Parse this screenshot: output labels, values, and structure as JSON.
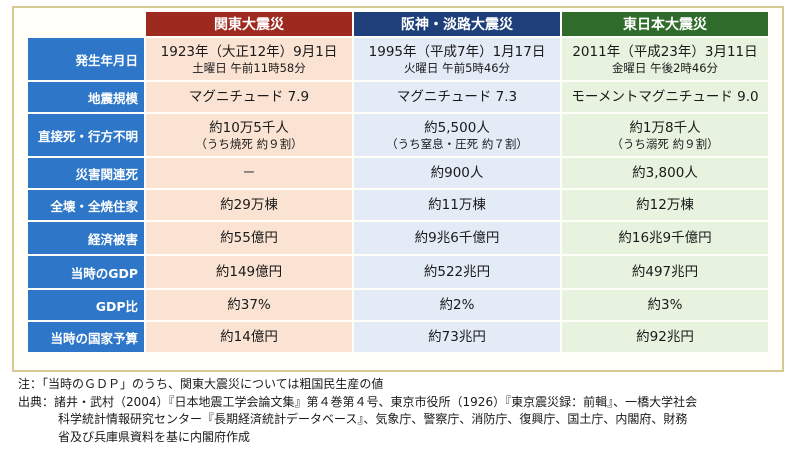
{
  "columns": [
    "関東大震災",
    "阪神・淡路大震災",
    "東日本大震災"
  ],
  "rows": [
    {
      "label": "発生年月日",
      "cells": [
        {
          "main": "1923年（大正12年）9月1日",
          "sub": "土曜日 午前11時58分"
        },
        {
          "main": "1995年（平成7年）1月17日",
          "sub": "火曜日 午前5時46分"
        },
        {
          "main": "2011年（平成23年）3月11日",
          "sub": "金曜日 午後2時46分"
        }
      ]
    },
    {
      "label": "地震規模",
      "cells": [
        {
          "main": "マグニチュード 7.9"
        },
        {
          "main": "マグニチュード 7.3"
        },
        {
          "main": "モーメントマグニチュード 9.0"
        }
      ]
    },
    {
      "label": "直接死・行方不明",
      "cells": [
        {
          "main": "約10万5千人",
          "sub": "（うち焼死 約９割）"
        },
        {
          "main": "約5,500人",
          "sub": "（うち窒息・圧死 約７割）"
        },
        {
          "main": "約1万8千人",
          "sub": "（うち溺死 約９割）"
        }
      ]
    },
    {
      "label": "災害関連死",
      "cells": [
        {
          "main": "－"
        },
        {
          "main": "約900人"
        },
        {
          "main": "約3,800人"
        }
      ]
    },
    {
      "label": "全壊・全焼住家",
      "cells": [
        {
          "main": "約29万棟"
        },
        {
          "main": "約11万棟"
        },
        {
          "main": "約12万棟"
        }
      ]
    },
    {
      "label": "経済被害",
      "cells": [
        {
          "main": "約55億円"
        },
        {
          "main": "約9兆6千億円"
        },
        {
          "main": "約16兆9千億円"
        }
      ]
    },
    {
      "label": "当時のGDP",
      "cells": [
        {
          "main": "約149億円"
        },
        {
          "main": "約522兆円"
        },
        {
          "main": "約497兆円"
        }
      ]
    },
    {
      "label": "GDP比",
      "cells": [
        {
          "main": "約37%"
        },
        {
          "main": "約2%"
        },
        {
          "main": "約3%"
        }
      ]
    },
    {
      "label": "当時の国家予算",
      "cells": [
        {
          "main": "約14億円"
        },
        {
          "main": "約73兆円"
        },
        {
          "main": "約92兆円"
        }
      ]
    }
  ],
  "notes": {
    "note": "注：「当時のＧＤＰ」のうち、関東大震災については粗国民生産の値",
    "source_line1": "出典：諸井・武村（2004）『日本地震工学会論文集』第４巻第４号、東京市役所（1926）『東京震災録：前輯』、一橋大学社会",
    "source_line2": "科学統計情報研究センター『長期経済統計データベース』、気象庁、警察庁、消防庁、復興庁、国土庁、内閣府、財務",
    "source_line3": "省及び兵庫県資料を基に内閣府作成"
  }
}
